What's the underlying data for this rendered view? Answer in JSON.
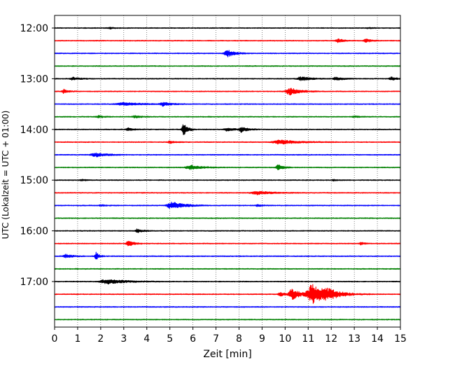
{
  "chart_data": {
    "type": "line",
    "chart_kind": "seismogram-helicorder",
    "xlabel": "Zeit  [min]",
    "ylabel": "UTC (Lokalzeit = UTC + 01:00)",
    "xlim": [
      0,
      15
    ],
    "x_ticks": [
      0,
      1,
      2,
      3,
      4,
      5,
      6,
      7,
      8,
      9,
      10,
      11,
      12,
      13,
      14,
      15
    ],
    "x_tick_labels": [
      "0",
      "1",
      "2",
      "3",
      "4",
      "5",
      "6",
      "7",
      "8",
      "9",
      "10",
      "11",
      "12",
      "13",
      "14",
      "15"
    ],
    "x_grid": "dotted vertical lines at each minute",
    "y_tick_labels": [
      "12:00",
      "13:00",
      "14:00",
      "15:00",
      "16:00",
      "17:00"
    ],
    "trace_interval_minutes": 15,
    "color_cycle": [
      "#000000",
      "#ff0000",
      "#0000ff",
      "#008000"
    ],
    "traces": [
      {
        "start": "12:00",
        "color": "#000000",
        "events": [
          {
            "t": 2.4,
            "amp": 0.1,
            "dur": 0.4
          },
          {
            "t": 13.6,
            "amp": 0.08,
            "dur": 0.3
          }
        ]
      },
      {
        "start": "12:15",
        "color": "#ff0000",
        "events": [
          {
            "t": 12.3,
            "amp": 0.25,
            "dur": 0.5
          },
          {
            "t": 13.5,
            "amp": 0.28,
            "dur": 0.4
          }
        ]
      },
      {
        "start": "12:30",
        "color": "#0000ff",
        "events": [
          {
            "t": 7.5,
            "amp": 0.55,
            "dur": 0.6
          }
        ]
      },
      {
        "start": "12:45",
        "color": "#008000",
        "events": []
      },
      {
        "start": "13:00",
        "color": "#000000",
        "events": [
          {
            "t": 0.8,
            "amp": 0.2,
            "dur": 0.6
          },
          {
            "t": 10.7,
            "amp": 0.3,
            "dur": 0.8
          },
          {
            "t": 12.2,
            "amp": 0.25,
            "dur": 0.6
          },
          {
            "t": 14.6,
            "amp": 0.25,
            "dur": 0.4
          }
        ]
      },
      {
        "start": "13:15",
        "color": "#ff0000",
        "events": [
          {
            "t": 0.4,
            "amp": 0.3,
            "dur": 0.4
          },
          {
            "t": 10.2,
            "amp": 0.55,
            "dur": 0.8
          }
        ]
      },
      {
        "start": "13:30",
        "color": "#0000ff",
        "events": [
          {
            "t": 3.0,
            "amp": 0.2,
            "dur": 1.5
          },
          {
            "t": 4.7,
            "amp": 0.28,
            "dur": 0.6
          }
        ]
      },
      {
        "start": "13:45",
        "color": "#008000",
        "events": [
          {
            "t": 1.9,
            "amp": 0.18,
            "dur": 0.4
          },
          {
            "t": 3.5,
            "amp": 0.15,
            "dur": 0.6
          },
          {
            "t": 13.0,
            "amp": 0.12,
            "dur": 0.4
          }
        ]
      },
      {
        "start": "14:00",
        "color": "#000000",
        "events": [
          {
            "t": 3.2,
            "amp": 0.2,
            "dur": 0.5
          },
          {
            "t": 5.6,
            "amp": 0.9,
            "dur": 0.35
          },
          {
            "t": 7.5,
            "amp": 0.25,
            "dur": 0.6
          },
          {
            "t": 8.1,
            "amp": 0.4,
            "dur": 0.5
          }
        ]
      },
      {
        "start": "14:15",
        "color": "#ff0000",
        "events": [
          {
            "t": 5.0,
            "amp": 0.2,
            "dur": 0.4
          },
          {
            "t": 9.8,
            "amp": 0.3,
            "dur": 1.5
          }
        ]
      },
      {
        "start": "14:30",
        "color": "#0000ff",
        "events": [
          {
            "t": 1.8,
            "amp": 0.3,
            "dur": 0.9
          }
        ]
      },
      {
        "start": "14:45",
        "color": "#008000",
        "events": [
          {
            "t": 5.9,
            "amp": 0.35,
            "dur": 0.9
          },
          {
            "t": 9.7,
            "amp": 0.45,
            "dur": 0.4
          }
        ]
      },
      {
        "start": "15:00",
        "color": "#000000",
        "events": [
          {
            "t": 1.2,
            "amp": 0.1,
            "dur": 0.4
          },
          {
            "t": 12.1,
            "amp": 0.1,
            "dur": 0.3
          }
        ]
      },
      {
        "start": "15:15",
        "color": "#ff0000",
        "events": [
          {
            "t": 8.8,
            "amp": 0.25,
            "dur": 1.2
          }
        ]
      },
      {
        "start": "15:30",
        "color": "#0000ff",
        "events": [
          {
            "t": 2.0,
            "amp": 0.15,
            "dur": 0.3
          },
          {
            "t": 5.1,
            "amp": 0.55,
            "dur": 1.0
          },
          {
            "t": 8.8,
            "amp": 0.15,
            "dur": 0.4
          }
        ]
      },
      {
        "start": "15:45",
        "color": "#008000",
        "events": []
      },
      {
        "start": "16:00",
        "color": "#000000",
        "events": [
          {
            "t": 3.6,
            "amp": 0.28,
            "dur": 0.4
          }
        ]
      },
      {
        "start": "16:15",
        "color": "#ff0000",
        "events": [
          {
            "t": 3.2,
            "amp": 0.55,
            "dur": 0.4
          },
          {
            "t": 13.3,
            "amp": 0.2,
            "dur": 0.3
          }
        ]
      },
      {
        "start": "16:30",
        "color": "#0000ff",
        "events": [
          {
            "t": 0.5,
            "amp": 0.3,
            "dur": 0.5
          },
          {
            "t": 1.8,
            "amp": 0.6,
            "dur": 0.25
          }
        ]
      },
      {
        "start": "16:45",
        "color": "#008000",
        "events": []
      },
      {
        "start": "17:00",
        "color": "#000000",
        "events": [
          {
            "t": 2.3,
            "amp": 0.35,
            "dur": 1.5
          }
        ]
      },
      {
        "start": "17:15",
        "color": "#ff0000",
        "events": [
          {
            "t": 9.8,
            "amp": 0.28,
            "dur": 0.5
          },
          {
            "t": 10.3,
            "amp": 0.9,
            "dur": 0.6
          },
          {
            "t": 11.2,
            "amp": 1.6,
            "dur": 1.1
          },
          {
            "t": 11.9,
            "amp": 0.45,
            "dur": 1.2
          }
        ]
      },
      {
        "start": "17:30",
        "color": "#0000ff",
        "events": []
      },
      {
        "start": "17:45",
        "color": "#008000",
        "events": []
      }
    ]
  }
}
